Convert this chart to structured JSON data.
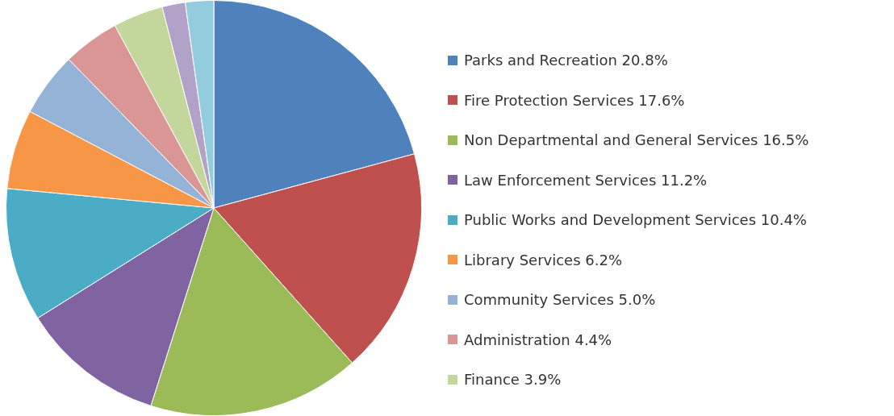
{
  "chart_data": {
    "type": "pie",
    "categories": [
      "Parks and Recreation 20.8%",
      "Fire Protection Services 17.6%",
      "Non Departmental and General Services 16.5%",
      "Law Enforcement Services 11.2%",
      "Public Works and Development Services 10.4%",
      "Library Services 6.2%",
      "Community Services 5.0%",
      "Administration 4.4%",
      "Finance 3.9%",
      null,
      null
    ],
    "values": [
      20.8,
      17.6,
      16.5,
      11.2,
      10.4,
      6.2,
      5.0,
      4.4,
      3.9,
      1.8,
      2.2
    ],
    "colors": [
      "#4f81bd",
      "#c0504d",
      "#9bbb59",
      "#8064a2",
      "#4bacc6",
      "#f79646",
      "#95b3d7",
      "#d99694",
      "#c3d69b",
      "#b2a2c7",
      "#93cddd"
    ],
    "legend": "right"
  }
}
